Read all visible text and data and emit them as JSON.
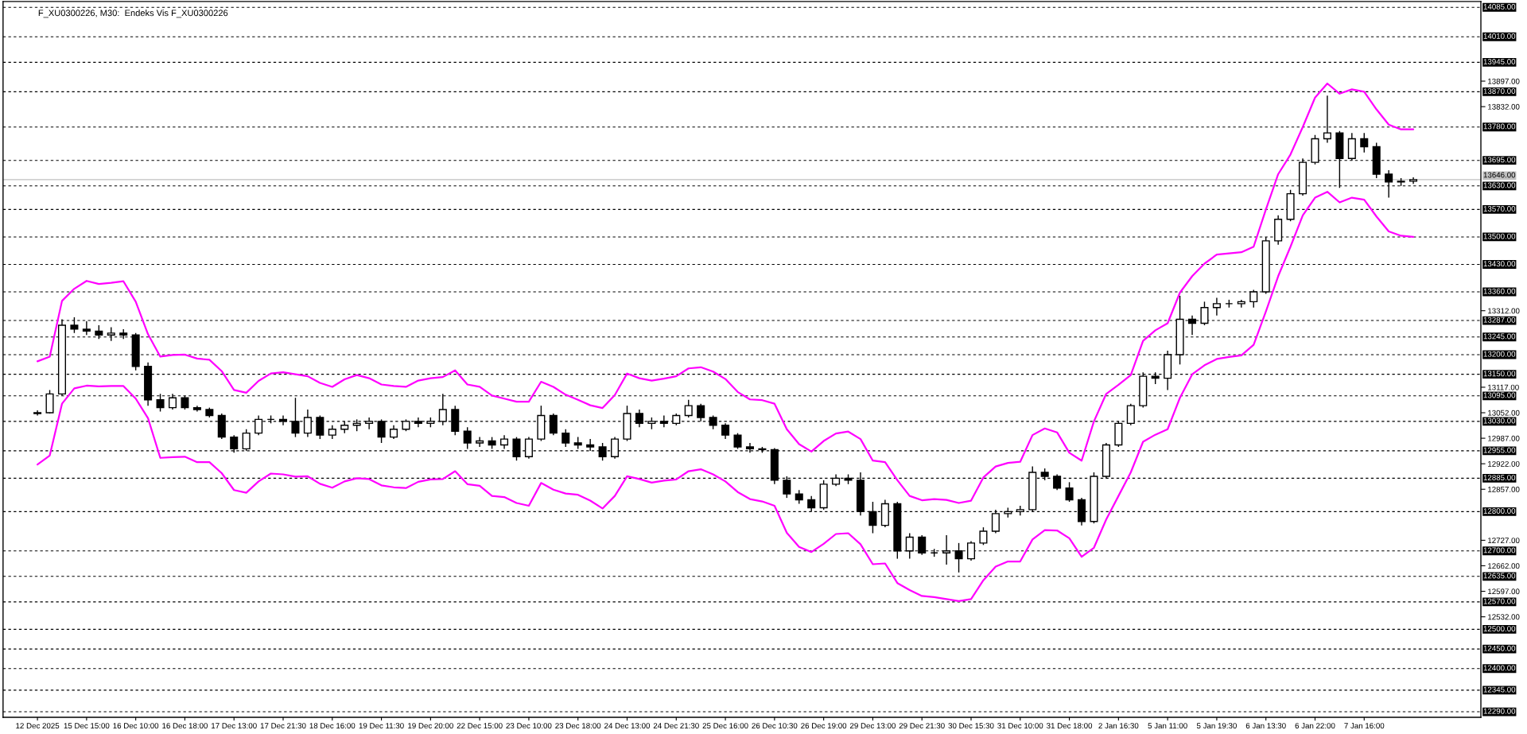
{
  "chart_data": {
    "type": "candlestick",
    "title": "F_XU0300226, M30:  Endeks Vis F_XU0300226",
    "categories": [
      "12 Dec 2025",
      null,
      null,
      null,
      "15 Dec 15:00",
      null,
      null,
      null,
      "16 Dec 10:00",
      null,
      null,
      null,
      "16 Dec 18:00",
      null,
      null,
      null,
      "17 Dec 13:00",
      null,
      null,
      null,
      "17 Dec 21:30",
      null,
      null,
      null,
      "18 Dec 16:00",
      null,
      null,
      null,
      "19 Dec 11:30",
      null,
      null,
      null,
      "19 Dec 20:00",
      null,
      null,
      null,
      "22 Dec 15:00",
      null,
      null,
      null,
      "23 Dec 10:00",
      null,
      null,
      null,
      "23 Dec 18:00",
      null,
      null,
      null,
      "24 Dec 13:00",
      null,
      null,
      null,
      "24 Dec 21:30",
      null,
      null,
      null,
      "25 Dec 16:00",
      null,
      null,
      null,
      "26 Dec 10:30",
      null,
      null,
      null,
      "26 Dec 19:00",
      null,
      null,
      null,
      "29 Dec 13:00",
      null,
      null,
      null,
      "29 Dec 21:30",
      null,
      null,
      null,
      "30 Dec 15:30",
      null,
      null,
      null,
      "31 Dec 10:00",
      null,
      null,
      null,
      "31 Dec 18:00",
      null,
      null,
      null,
      "2 Jan 16:30",
      null,
      null,
      null,
      "5 Jan 11:00",
      null,
      null,
      null,
      "5 Jan 19:30",
      null,
      null,
      null,
      "6 Jan 13:30",
      null,
      null,
      null,
      "6 Jan 22:00",
      null,
      null,
      null,
      "7 Jan 16:00",
      null,
      null,
      null,
      null
    ],
    "ohlc": [
      [
        13050,
        13058,
        13045,
        13052
      ],
      [
        13052,
        13110,
        13050,
        13100
      ],
      [
        13100,
        13290,
        13095,
        13275
      ],
      [
        13275,
        13295,
        13255,
        13265
      ],
      [
        13265,
        13285,
        13250,
        13260
      ],
      [
        13260,
        13275,
        13240,
        13250
      ],
      [
        13250,
        13270,
        13235,
        13255
      ],
      [
        13255,
        13265,
        13240,
        13250
      ],
      [
        13250,
        13255,
        13160,
        13170
      ],
      [
        13170,
        13180,
        13070,
        13085
      ],
      [
        13085,
        13100,
        13055,
        13065
      ],
      [
        13065,
        13100,
        13060,
        13090
      ],
      [
        13090,
        13095,
        13060,
        13065
      ],
      [
        13065,
        13070,
        13055,
        13060
      ],
      [
        13060,
        13065,
        13040,
        13045
      ],
      [
        13045,
        13050,
        12985,
        12990
      ],
      [
        12990,
        12995,
        12950,
        12960
      ],
      [
        12960,
        13010,
        12955,
        13000
      ],
      [
        13000,
        13045,
        12995,
        13035
      ],
      [
        13035,
        13045,
        13025,
        13035
      ],
      [
        13035,
        13045,
        13020,
        13030
      ],
      [
        13030,
        13090,
        12990,
        13000
      ],
      [
        13000,
        13060,
        12990,
        13040
      ],
      [
        13040,
        13045,
        12985,
        12995
      ],
      [
        12995,
        13020,
        12985,
        13010
      ],
      [
        13010,
        13030,
        13000,
        13020
      ],
      [
        13020,
        13035,
        13005,
        13025
      ],
      [
        13025,
        13040,
        13010,
        13030
      ],
      [
        13030,
        13035,
        12975,
        12990
      ],
      [
        12990,
        13020,
        12985,
        13010
      ],
      [
        13010,
        13035,
        13005,
        13030
      ],
      [
        13030,
        13040,
        13015,
        13025
      ],
      [
        13025,
        13040,
        13015,
        13030
      ],
      [
        13030,
        13100,
        13020,
        13060
      ],
      [
        13060,
        13070,
        12995,
        13005
      ],
      [
        13005,
        13015,
        12960,
        12975
      ],
      [
        12975,
        12990,
        12965,
        12980
      ],
      [
        12980,
        12990,
        12960,
        12970
      ],
      [
        12970,
        12995,
        12960,
        12985
      ],
      [
        12985,
        12990,
        12930,
        12940
      ],
      [
        12940,
        12990,
        12935,
        12985
      ],
      [
        12985,
        13070,
        12980,
        13045
      ],
      [
        13045,
        13050,
        12995,
        13000
      ],
      [
        13000,
        13010,
        12965,
        12975
      ],
      [
        12975,
        12990,
        12960,
        12970
      ],
      [
        12970,
        12985,
        12955,
        12965
      ],
      [
        12965,
        12975,
        12930,
        12940
      ],
      [
        12940,
        12990,
        12935,
        12985
      ],
      [
        12985,
        13070,
        12980,
        13050
      ],
      [
        13050,
        13060,
        13015,
        13025
      ],
      [
        13025,
        13040,
        13010,
        13030
      ],
      [
        13030,
        13045,
        13015,
        13025
      ],
      [
        13025,
        13050,
        13020,
        13045
      ],
      [
        13045,
        13085,
        13040,
        13070
      ],
      [
        13070,
        13075,
        13030,
        13040
      ],
      [
        13040,
        13045,
        13010,
        13020
      ],
      [
        13020,
        13025,
        12985,
        12995
      ],
      [
        12995,
        13000,
        12960,
        12965
      ],
      [
        12965,
        12975,
        12950,
        12960
      ],
      [
        12960,
        12965,
        12950,
        12958
      ],
      [
        12958,
        12962,
        12870,
        12880
      ],
      [
        12880,
        12890,
        12835,
        12845
      ],
      [
        12845,
        12855,
        12820,
        12830
      ],
      [
        12830,
        12840,
        12800,
        12810
      ],
      [
        12810,
        12880,
        12805,
        12870
      ],
      [
        12870,
        12895,
        12865,
        12885
      ],
      [
        12885,
        12895,
        12870,
        12880
      ],
      [
        12880,
        12900,
        12790,
        12800
      ],
      [
        12800,
        12825,
        12745,
        12765
      ],
      [
        12765,
        12830,
        12760,
        12820
      ],
      [
        12820,
        12825,
        12680,
        12700
      ],
      [
        12700,
        12745,
        12680,
        12735
      ],
      [
        12735,
        12740,
        12690,
        12695
      ],
      [
        12695,
        12705,
        12685,
        12695
      ],
      [
        12695,
        12740,
        12665,
        12700
      ],
      [
        12700,
        12720,
        12645,
        12680
      ],
      [
        12680,
        12725,
        12675,
        12720
      ],
      [
        12720,
        12760,
        12715,
        12750
      ],
      [
        12750,
        12805,
        12745,
        12795
      ],
      [
        12795,
        12810,
        12785,
        12800
      ],
      [
        12800,
        12815,
        12790,
        12805
      ],
      [
        12805,
        12915,
        12800,
        12900
      ],
      [
        12900,
        12910,
        12880,
        12890
      ],
      [
        12890,
        12895,
        12855,
        12860
      ],
      [
        12860,
        12875,
        12825,
        12830
      ],
      [
        12830,
        12835,
        12765,
        12775
      ],
      [
        12775,
        12900,
        12770,
        12890
      ],
      [
        12890,
        12975,
        12885,
        12970
      ],
      [
        12970,
        13030,
        12965,
        13025
      ],
      [
        13025,
        13075,
        13020,
        13070
      ],
      [
        13070,
        13155,
        13065,
        13145
      ],
      [
        13145,
        13155,
        13125,
        13140
      ],
      [
        13140,
        13210,
        13110,
        13200
      ],
      [
        13200,
        13350,
        13175,
        13290
      ],
      [
        13290,
        13300,
        13250,
        13280
      ],
      [
        13280,
        13335,
        13275,
        13320
      ],
      [
        13320,
        13345,
        13300,
        13330
      ],
      [
        13330,
        13340,
        13320,
        13330
      ],
      [
        13330,
        13340,
        13320,
        13335
      ],
      [
        13335,
        13365,
        13320,
        13360
      ],
      [
        13360,
        13500,
        13355,
        13490
      ],
      [
        13490,
        13555,
        13480,
        13545
      ],
      [
        13545,
        13620,
        13540,
        13610
      ],
      [
        13610,
        13700,
        13605,
        13690
      ],
      [
        13690,
        13760,
        13685,
        13750
      ],
      [
        13750,
        13860,
        13740,
        13765
      ],
      [
        13765,
        13770,
        13625,
        13700
      ],
      [
        13700,
        13765,
        13695,
        13750
      ],
      [
        13750,
        13765,
        13715,
        13730
      ],
      [
        13730,
        13740,
        13650,
        13660
      ],
      [
        13660,
        13670,
        13600,
        13640
      ],
      [
        13640,
        13650,
        13630,
        13642
      ],
      [
        13642,
        13652,
        13635,
        13646
      ]
    ],
    "series": [
      {
        "type": "line",
        "color": "#ff00ff",
        "values": [
          13183,
          13195,
          13337,
          13368,
          13388,
          13380,
          13383,
          13387,
          13335,
          13252,
          13195,
          13199,
          13200,
          13190,
          13187,
          13158,
          13110,
          13103,
          13133,
          13152,
          13155,
          13150,
          13145,
          13128,
          13118,
          13137,
          13148,
          13140,
          13124,
          13120,
          13118,
          13134,
          13140,
          13143,
          13160,
          13124,
          13118,
          13096,
          13088,
          13080,
          13080,
          13131,
          13118,
          13098,
          13085,
          13071,
          13064,
          13097,
          13152,
          13140,
          13134,
          13139,
          13145,
          13165,
          13168,
          13157,
          13138,
          13105,
          13086,
          13084,
          13075,
          13010,
          12972,
          12953,
          12980,
          12999,
          13004,
          12985,
          12930,
          12926,
          12880,
          12840,
          12829,
          12832,
          12830,
          12822,
          12828,
          12887,
          12915,
          12924,
          12927,
          12995,
          13012,
          13002,
          12950,
          12930,
          13030,
          13100,
          13123,
          13148,
          13235,
          13262,
          13280,
          13358,
          13400,
          13432,
          13455,
          13458,
          13461,
          13475,
          13570,
          13660,
          13710,
          13780,
          13855,
          13891,
          13865,
          13876,
          13870,
          13825,
          13786,
          13774,
          13774
        ]
      },
      {
        "type": "line",
        "color": "#ff00ff",
        "values": [
          12920,
          12943,
          13075,
          13114,
          13121,
          13119,
          13120,
          13120,
          13088,
          13038,
          12937,
          12939,
          12940,
          12926,
          12926,
          12898,
          12855,
          12848,
          12877,
          12897,
          12895,
          12889,
          12890,
          12871,
          12861,
          12877,
          12885,
          12883,
          12867,
          12862,
          12860,
          12876,
          12882,
          12883,
          12903,
          12870,
          12866,
          12840,
          12837,
          12822,
          12815,
          12873,
          12856,
          12846,
          12843,
          12828,
          12808,
          12840,
          12890,
          12883,
          12874,
          12879,
          12882,
          12903,
          12908,
          12895,
          12877,
          12850,
          12832,
          12826,
          12815,
          12746,
          12710,
          12697,
          12718,
          12743,
          12745,
          12717,
          12666,
          12668,
          12618,
          12600,
          12585,
          12582,
          12577,
          12572,
          12577,
          12625,
          12660,
          12673,
          12673,
          12729,
          12753,
          12752,
          12732,
          12685,
          12708,
          12780,
          12840,
          12900,
          12978,
          12996,
          13010,
          13090,
          13150,
          13173,
          13189,
          13194,
          13198,
          13225,
          13310,
          13400,
          13475,
          13555,
          13600,
          13615,
          13588,
          13600,
          13595,
          13552,
          13514,
          13503,
          13500
        ]
      }
    ],
    "ylim": [
      12276,
      14100
    ],
    "yticks": [
      {
        "value": 13897,
        "label": "13897.00"
      },
      {
        "value": 13832,
        "label": "13832.00"
      },
      {
        "value": 13312,
        "label": "13312.00"
      },
      {
        "value": 13117,
        "label": "13117.00"
      },
      {
        "value": 13052,
        "label": "13052.00"
      },
      {
        "value": 12987,
        "label": "12987.00"
      },
      {
        "value": 12922,
        "label": "12922.00"
      },
      {
        "value": 12857,
        "label": "12857.00"
      },
      {
        "value": 12727,
        "label": "12727.00"
      },
      {
        "value": 12662,
        "label": "12662.00"
      },
      {
        "value": 12597,
        "label": "12597.00"
      },
      {
        "value": 12532,
        "label": "12532.00"
      }
    ],
    "ref_lines": [
      {
        "axis": "y",
        "value": 14085,
        "label": "14085.00",
        "color": "#000000",
        "line_style": "dashed"
      },
      {
        "axis": "y",
        "value": 14010,
        "label": "14010.00",
        "color": "#000000",
        "line_style": "dashed"
      },
      {
        "axis": "y",
        "value": 13945,
        "label": "13945.00",
        "color": "#000000",
        "line_style": "dashed"
      },
      {
        "axis": "y",
        "value": 13870,
        "label": "13870.00",
        "color": "#000000",
        "line_style": "dashed"
      },
      {
        "axis": "y",
        "value": 13780,
        "label": "13780.00",
        "color": "#000000",
        "line_style": "dashed"
      },
      {
        "axis": "y",
        "value": 13695,
        "label": "13695.00",
        "color": "#000000",
        "line_style": "dashed"
      },
      {
        "axis": "y",
        "value": 13646,
        "label": "13646.00",
        "color": "#c0c0c0",
        "line_style": "solid"
      },
      {
        "axis": "y",
        "value": 13630,
        "label": "13630.00",
        "color": "#000000",
        "line_style": "dashed"
      },
      {
        "axis": "y",
        "value": 13570,
        "label": "13570.00",
        "color": "#000000",
        "line_style": "dashed"
      },
      {
        "axis": "y",
        "value": 13500,
        "label": "13500.00",
        "color": "#000000",
        "line_style": "dashed"
      },
      {
        "axis": "y",
        "value": 13430,
        "label": "13430.00",
        "color": "#000000",
        "line_style": "dashed"
      },
      {
        "axis": "y",
        "value": 13360,
        "label": "13360.00",
        "color": "#000000",
        "line_style": "dashed"
      },
      {
        "axis": "y",
        "value": 13287,
        "label": "13287.00",
        "color": "#000000",
        "line_style": "dashed"
      },
      {
        "axis": "y",
        "value": 13245,
        "label": "13245.00",
        "color": "#000000",
        "line_style": "dashed"
      },
      {
        "axis": "y",
        "value": 13200,
        "label": "13200.00",
        "color": "#000000",
        "line_style": "dashed"
      },
      {
        "axis": "y",
        "value": 13150,
        "label": "13150.00",
        "color": "#000000",
        "line_style": "dashed"
      },
      {
        "axis": "y",
        "value": 13095,
        "label": "13095.00",
        "color": "#000000",
        "line_style": "dashed"
      },
      {
        "axis": "y",
        "value": 13030,
        "label": "13030.00",
        "color": "#000000",
        "line_style": "dashed"
      },
      {
        "axis": "y",
        "value": 12955,
        "label": "12955.00",
        "color": "#000000",
        "line_style": "dashed"
      },
      {
        "axis": "y",
        "value": 12885,
        "label": "12885.00",
        "color": "#000000",
        "line_style": "dashed"
      },
      {
        "axis": "y",
        "value": 12800,
        "label": "12800.00",
        "color": "#000000",
        "line_style": "dashed"
      },
      {
        "axis": "y",
        "value": 12700,
        "label": "12700.00",
        "color": "#000000",
        "line_style": "dashed"
      },
      {
        "axis": "y",
        "value": 12635,
        "label": "12635.00",
        "color": "#000000",
        "line_style": "dashed"
      },
      {
        "axis": "y",
        "value": 12570,
        "label": "12570.00",
        "color": "#000000",
        "line_style": "dashed"
      },
      {
        "axis": "y",
        "value": 12500,
        "label": "12500.00",
        "color": "#000000",
        "line_style": "dashed"
      },
      {
        "axis": "y",
        "value": 12450,
        "label": "12450.00",
        "color": "#000000",
        "line_style": "dashed"
      },
      {
        "axis": "y",
        "value": 12400,
        "label": "12400.00",
        "color": "#000000",
        "line_style": "dashed"
      },
      {
        "axis": "y",
        "value": 12345,
        "label": "12345.00",
        "color": "#000000",
        "line_style": "dashed"
      },
      {
        "axis": "y",
        "value": 12290,
        "label": "12290.00",
        "color": "#000000",
        "line_style": "dashed"
      }
    ]
  }
}
